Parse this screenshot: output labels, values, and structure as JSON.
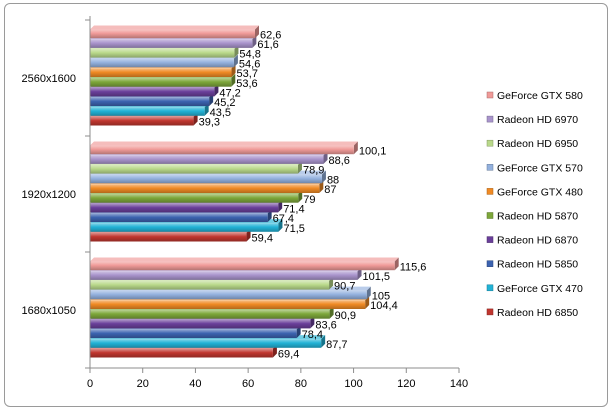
{
  "chart_data": {
    "type": "bar",
    "orientation": "horizontal",
    "title": "",
    "xlabel": "",
    "ylabel": "",
    "xlim": [
      0,
      140
    ],
    "x_ticks": [
      0,
      20,
      40,
      60,
      80,
      100,
      120,
      140
    ],
    "grid": false,
    "legend_position": "right",
    "decimal_separator": ",",
    "categories": [
      "1680x1050",
      "1920x1200",
      "2560x1600"
    ],
    "series": [
      {
        "name": "Radeon HD 6850",
        "color": "#c0362f",
        "values": [
          69.4,
          59.4,
          39.3
        ]
      },
      {
        "name": "GeForce GTX 470",
        "color": "#22b3d6",
        "values": [
          87.7,
          71.5,
          43.5
        ]
      },
      {
        "name": "Radeon HD 5850",
        "color": "#3c63b0",
        "values": [
          78.4,
          67.4,
          45.2
        ]
      },
      {
        "name": "Radeon HD 6870",
        "color": "#6a3f9a",
        "values": [
          83.6,
          71.4,
          47.2
        ]
      },
      {
        "name": "Radeon HD 5870",
        "color": "#7da73a",
        "values": [
          90.9,
          79,
          53.6
        ]
      },
      {
        "name": "GeForce GTX 480",
        "color": "#f08a24",
        "values": [
          104.4,
          87,
          53.7
        ]
      },
      {
        "name": "GeForce GTX 570",
        "color": "#93b1de",
        "values": [
          105,
          88,
          54.6
        ]
      },
      {
        "name": "Radeon HD 6950",
        "color": "#b9d98a",
        "values": [
          90.7,
          78.9,
          54.8
        ]
      },
      {
        "name": "Radeon HD 6970",
        "color": "#a994cc",
        "values": [
          101.5,
          88.6,
          61.6
        ]
      },
      {
        "name": "GeForce GTX 580",
        "color": "#f09a98",
        "values": [
          115.6,
          100.1,
          62.6
        ]
      }
    ]
  }
}
